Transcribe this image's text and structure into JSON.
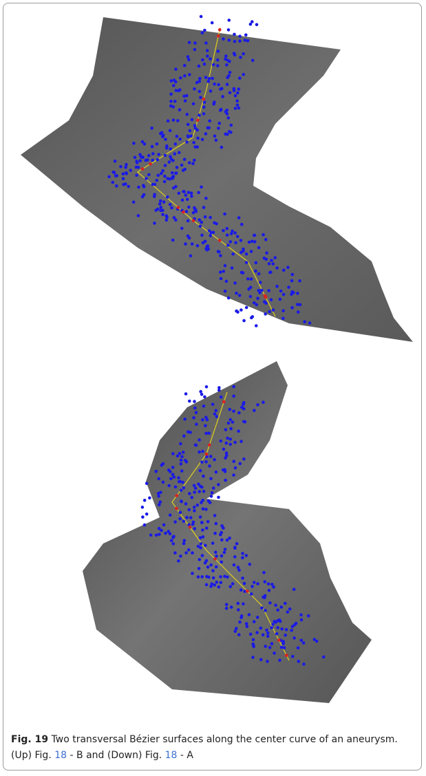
{
  "figure": {
    "label": "Fig. 19",
    "caption": {
      "text1": "Two transversal Bézier surfaces along the center curve of an aneurysm. (Up) Fig.",
      "ref1": "18",
      "text2": "- B and (Down) Fig.",
      "ref2": "18",
      "text3": "- A"
    }
  }
}
